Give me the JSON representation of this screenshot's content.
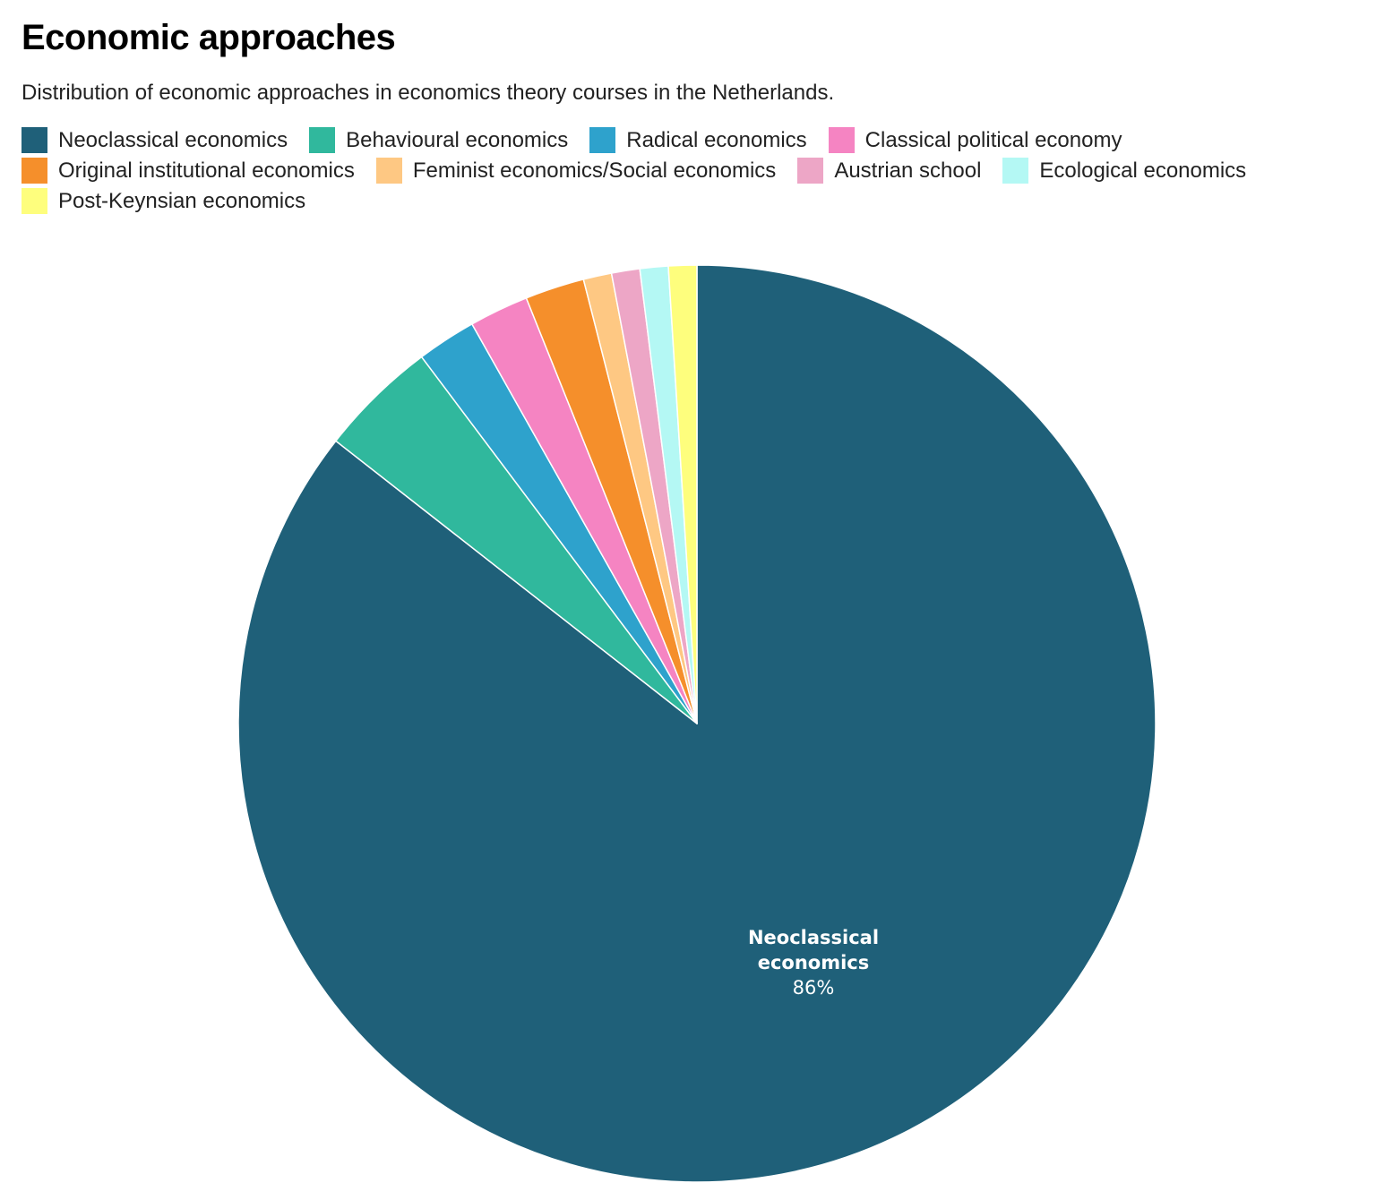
{
  "title": "Economic approaches",
  "subtitle": "Distribution of economic approaches in economics theory courses in the Netherlands.",
  "chart_data": {
    "type": "pie",
    "title": "Economic approaches",
    "subtitle": "Distribution of economic approaches in economics theory courses in the Netherlands.",
    "legend_position": "top",
    "start_angle": "top, clockwise",
    "slices": [
      {
        "name": "Neoclassical economics",
        "value": 86,
        "color": "#1f6079",
        "label": [
          "Neoclassical",
          "economics",
          "86%"
        ]
      },
      {
        "name": "Behavioural economics",
        "value": 4.2,
        "color": "#30b89d"
      },
      {
        "name": "Radical economics",
        "value": 2.1,
        "color": "#2ea2cc"
      },
      {
        "name": "Classical political economy",
        "value": 2.1,
        "color": "#f584c2"
      },
      {
        "name": "Original institutional economics",
        "value": 2.1,
        "color": "#f58f2b"
      },
      {
        "name": "Feminist economics/Social economics",
        "value": 1.0,
        "color": "#fec883"
      },
      {
        "name": "Austrian school",
        "value": 1.0,
        "color": "#eda6c6"
      },
      {
        "name": "Ecological economics",
        "value": 1.0,
        "color": "#b4f8f4"
      },
      {
        "name": "Post-Keynsian economics",
        "value": 1.0,
        "color": "#fefe7d"
      }
    ]
  }
}
